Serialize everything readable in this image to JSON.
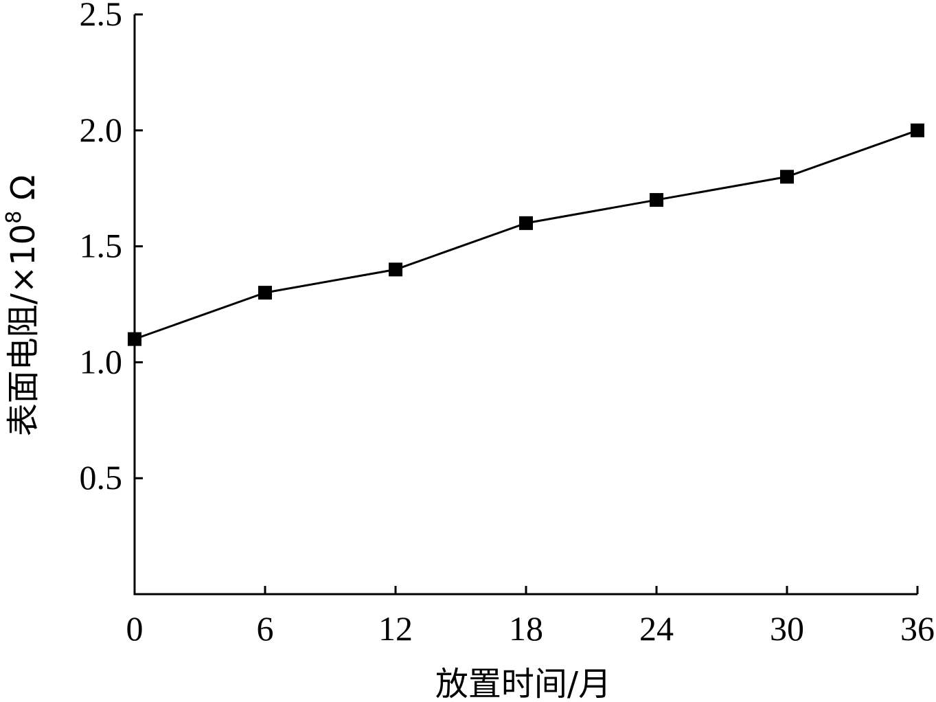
{
  "chart_data": {
    "type": "line",
    "x": [
      0,
      6,
      12,
      18,
      24,
      30,
      36
    ],
    "series": [
      {
        "values": [
          1.1,
          1.3,
          1.4,
          1.6,
          1.7,
          1.8,
          2.0
        ]
      }
    ],
    "xlabel": "放置时间/月",
    "ylabel_main": "表面电阻/×10",
    "ylabel_exp": "8",
    "ylabel_unit": " Ω",
    "xlim": [
      0,
      36
    ],
    "ylim": [
      0,
      2.5
    ],
    "xticks": [
      "0",
      "6",
      "12",
      "18",
      "24",
      "30",
      "36"
    ],
    "yticks": [
      "0.5",
      "1.0",
      "1.5",
      "2.0",
      "2.5"
    ],
    "ytick_values": [
      0.5,
      1.0,
      1.5,
      2.0,
      2.5
    ],
    "marker": "square",
    "grid": false,
    "colors": {
      "line": "#000000",
      "marker": "#000000"
    }
  }
}
